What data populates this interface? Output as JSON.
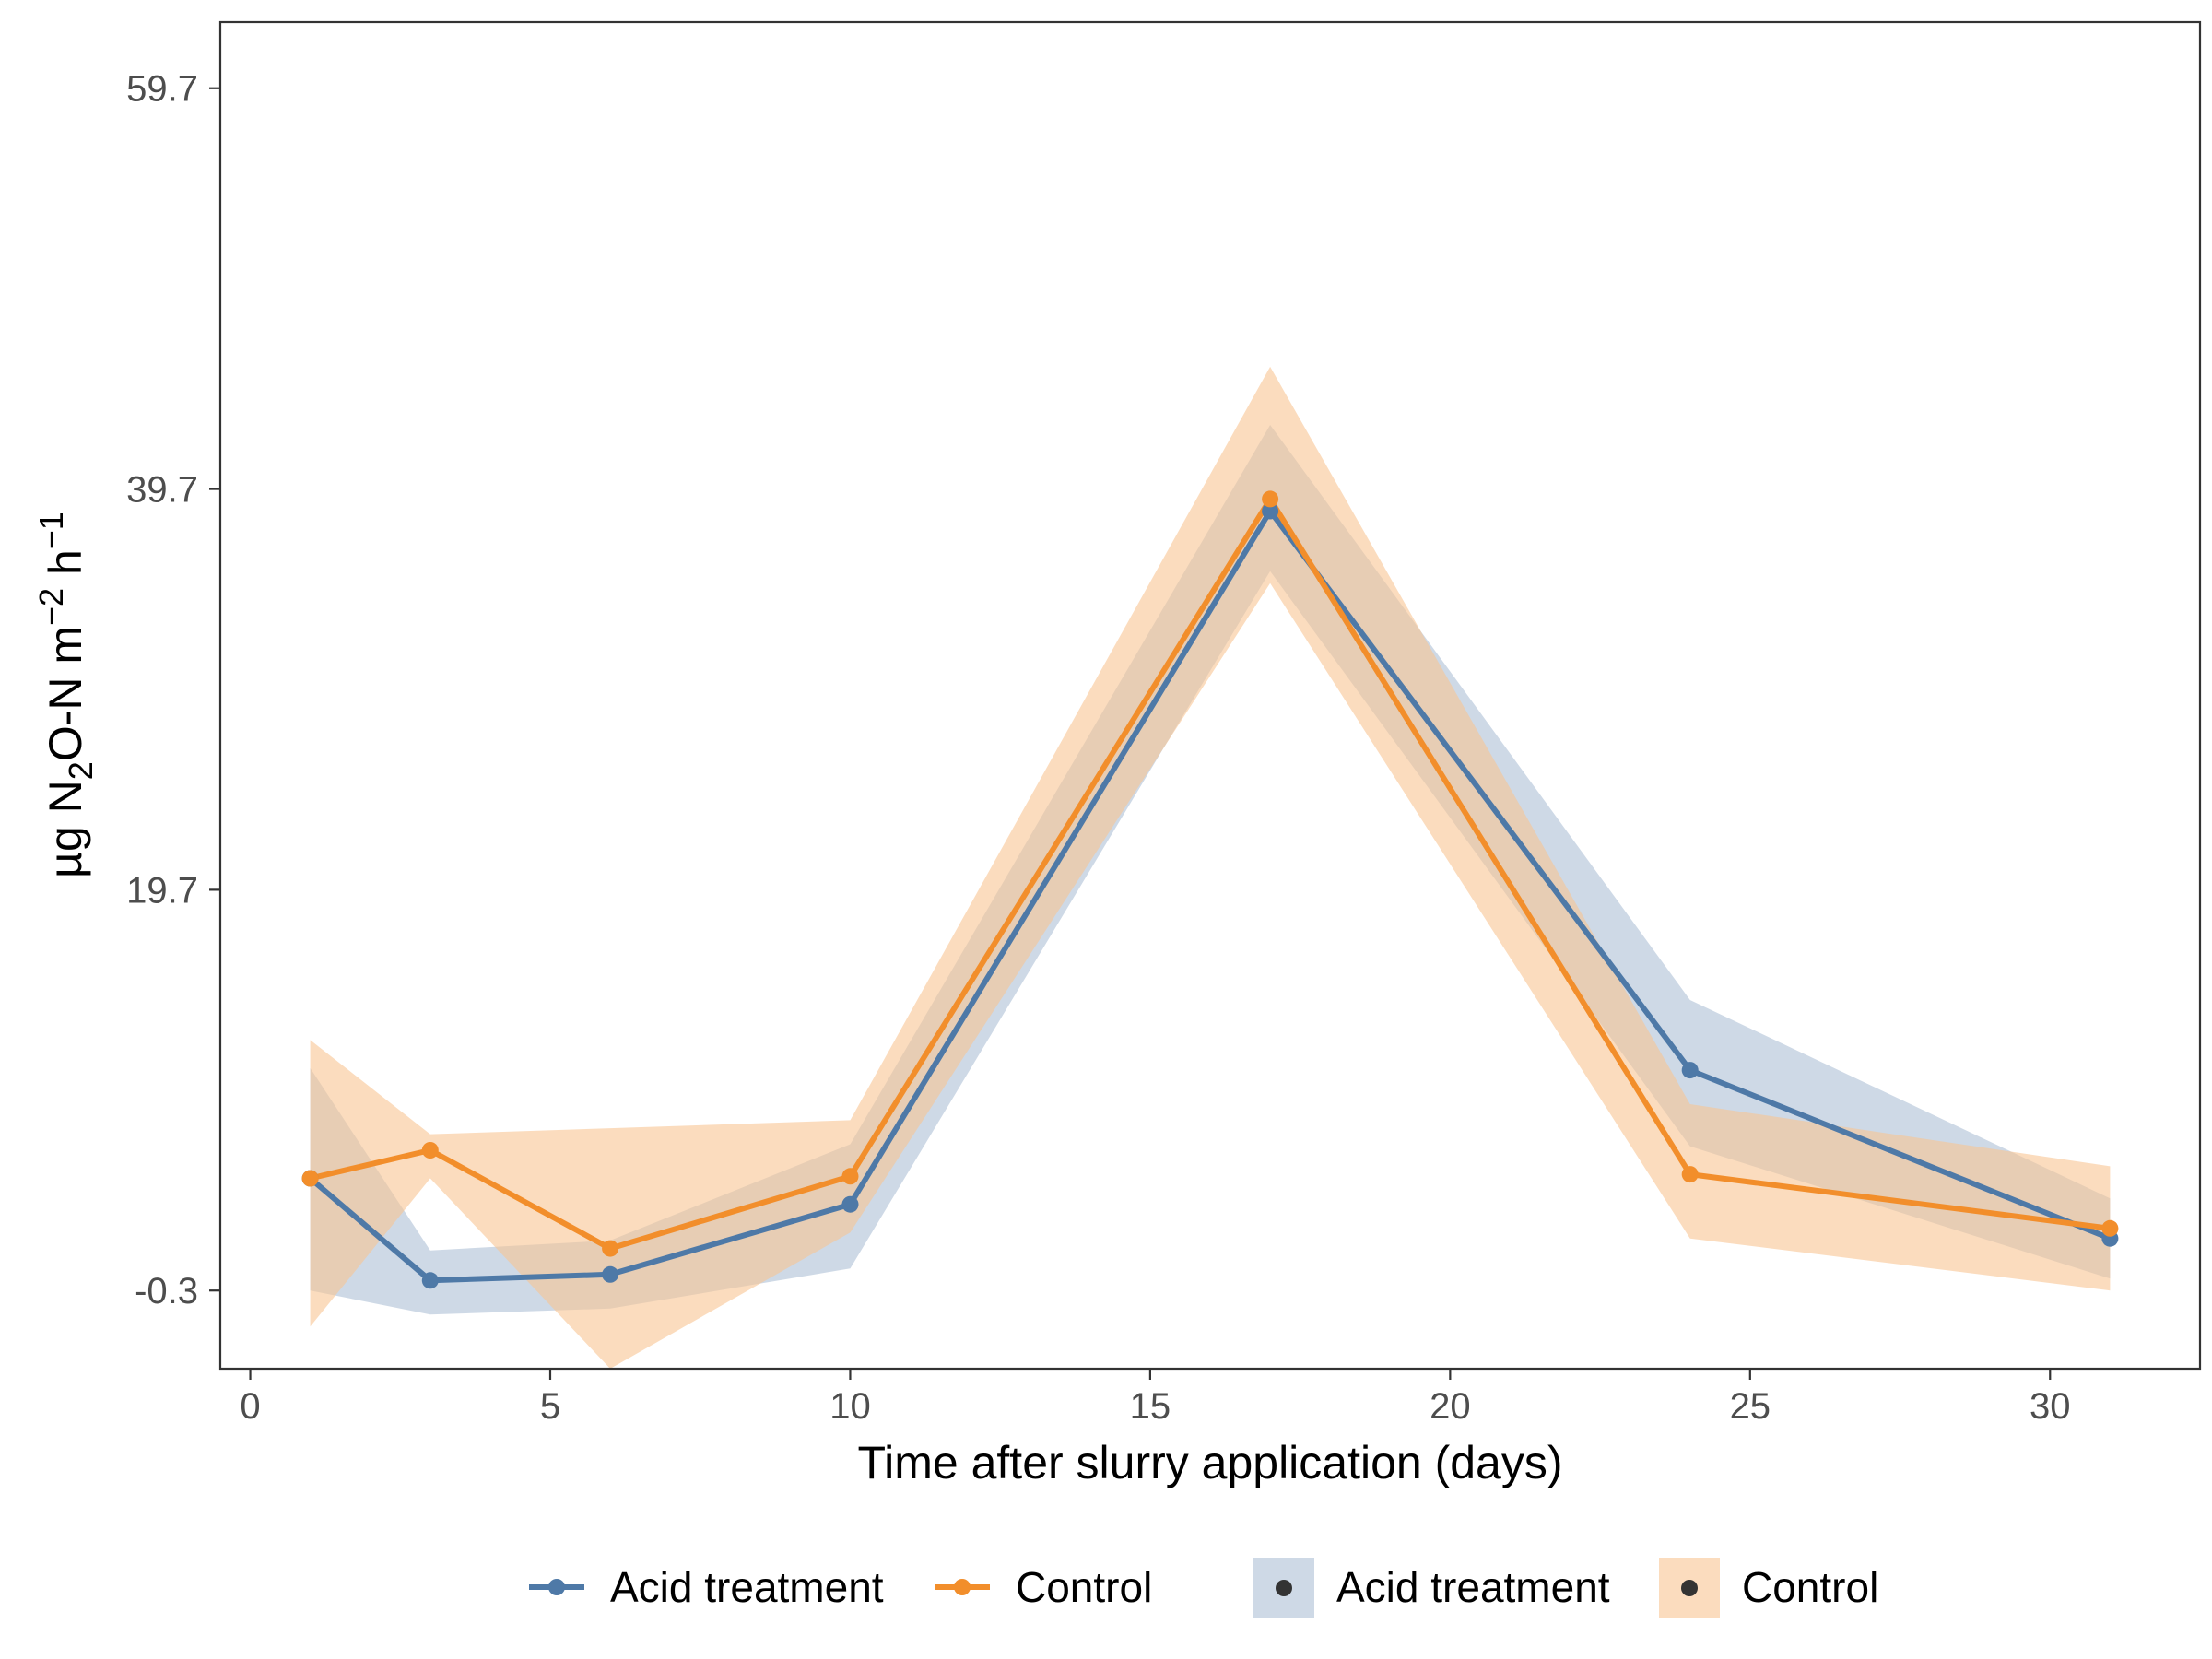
{
  "chart_data": {
    "type": "line",
    "xlabel": "Time after slurry application (days)",
    "ylabel_parts": {
      "prefix": "µg N",
      "sub": "2",
      "mid1": "O-N m",
      "sup1": "−2",
      "mid2": " h",
      "sup2": "−1"
    },
    "xlim": [
      -0.5,
      32.5
    ],
    "ylim": [
      -4.2,
      63.0
    ],
    "x_ticks": [
      0,
      5,
      10,
      15,
      20,
      25,
      30
    ],
    "x_tick_labels": [
      "0",
      "5",
      "10",
      "15",
      "20",
      "25",
      "30"
    ],
    "y_ticks": [
      -0.3,
      19.7,
      39.7,
      59.7
    ],
    "y_tick_labels": [
      "-0.3",
      "19.7",
      "39.7",
      "59.7"
    ],
    "grid": false,
    "legend_position": "bottom",
    "x": [
      1,
      3,
      6,
      10,
      17,
      24,
      31
    ],
    "series": [
      {
        "name": "Acid treatment",
        "color": "#4e79a7",
        "ribbon_color": "#aebfd6",
        "values": [
          5.3,
          0.2,
          0.5,
          4.0,
          38.6,
          10.7,
          2.3
        ],
        "lower": [
          -0.3,
          -1.5,
          -1.2,
          0.8,
          35.6,
          6.9,
          0.3
        ],
        "upper": [
          10.8,
          1.7,
          2.2,
          7.0,
          42.9,
          14.2,
          4.3
        ]
      },
      {
        "name": "Control",
        "color": "#f28e2b",
        "ribbon_color": "#f8c493",
        "values": [
          5.3,
          6.7,
          1.8,
          5.4,
          39.2,
          5.5,
          2.8
        ],
        "lower": [
          -2.1,
          5.3,
          -4.2,
          2.6,
          35.0,
          2.3,
          -0.3
        ],
        "upper": [
          12.2,
          7.5,
          7.8,
          8.2,
          45.8,
          9.0,
          5.9
        ]
      }
    ],
    "legend": {
      "line_entries": [
        "Acid treatment",
        "Control"
      ],
      "fill_entries": [
        "Acid treatment",
        "Control"
      ]
    }
  }
}
